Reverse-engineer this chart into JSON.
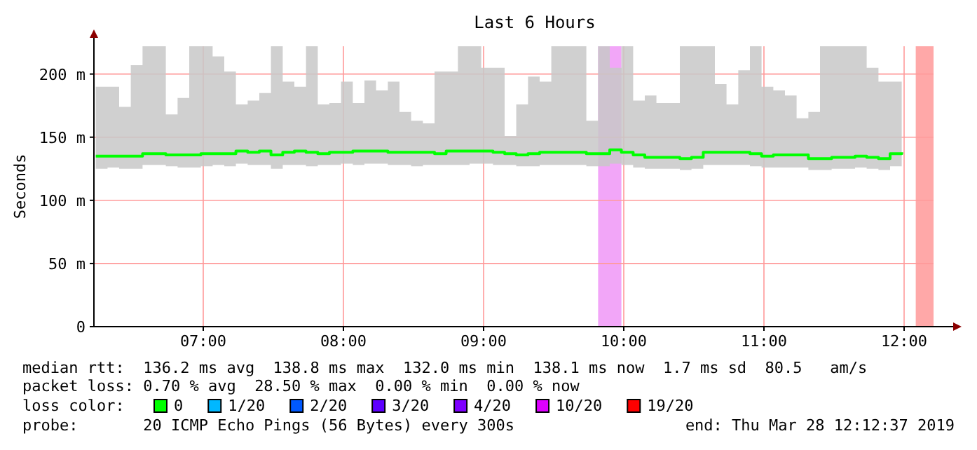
{
  "chart_data": {
    "type": "step",
    "title": "Last 6 Hours",
    "ylabel": "Seconds",
    "legend_title": "loss color:",
    "legend": "bottom",
    "grid": true,
    "xlim": [
      6.22,
      12.21
    ],
    "ylim": [
      0,
      222
    ],
    "xticks": [
      {
        "value": 7,
        "label": "07:00"
      },
      {
        "value": 8,
        "label": "08:00"
      },
      {
        "value": 9,
        "label": "09:00"
      },
      {
        "value": 10,
        "label": "10:00"
      },
      {
        "value": 11,
        "label": "11:00"
      },
      {
        "value": 12,
        "label": "12:00"
      }
    ],
    "yticks": [
      {
        "value": 0,
        "label": "0"
      },
      {
        "value": 50,
        "label": "50 m"
      },
      {
        "value": 100,
        "label": "100 m"
      },
      {
        "value": 150,
        "label": "150 m"
      },
      {
        "value": 200,
        "label": "200 m"
      }
    ],
    "x": [
      6.233,
      6.317,
      6.4,
      6.483,
      6.567,
      6.65,
      6.733,
      6.817,
      6.9,
      6.983,
      7.067,
      7.15,
      7.233,
      7.317,
      7.4,
      7.483,
      7.567,
      7.65,
      7.733,
      7.817,
      7.9,
      7.983,
      8.067,
      8.15,
      8.233,
      8.317,
      8.4,
      8.483,
      8.567,
      8.65,
      8.733,
      8.817,
      8.9,
      8.983,
      9.067,
      9.15,
      9.233,
      9.317,
      9.4,
      9.483,
      9.567,
      9.65,
      9.733,
      9.817,
      9.9,
      9.983,
      10.067,
      10.15,
      10.233,
      10.317,
      10.4,
      10.483,
      10.567,
      10.65,
      10.733,
      10.817,
      10.9,
      10.983,
      11.067,
      11.15,
      11.233,
      11.317,
      11.4,
      11.483,
      11.567,
      11.65,
      11.733,
      11.817,
      11.9,
      11.983
    ],
    "series": [
      {
        "name": "0",
        "color": "#00ff00",
        "values": [
          135,
          135,
          135,
          135,
          137,
          137,
          136,
          136,
          136,
          137,
          137,
          137,
          139,
          138,
          139,
          136,
          138,
          139,
          138,
          137,
          138,
          138,
          139,
          139,
          139,
          138,
          138,
          138,
          138,
          137,
          139,
          139,
          139,
          139,
          138,
          137,
          136,
          137,
          138,
          138,
          138,
          138,
          137,
          137,
          140,
          138,
          136,
          134,
          134,
          134,
          133,
          134,
          138,
          138,
          138,
          138,
          137,
          135,
          136,
          136,
          136,
          133,
          133,
          134,
          134,
          135,
          134,
          133,
          137,
          138
        ],
        "lower": [
          125,
          126,
          125,
          125,
          128,
          128,
          127,
          126,
          126,
          127,
          128,
          127,
          129,
          128,
          128,
          125,
          128,
          128,
          127,
          128,
          128,
          129,
          128,
          129,
          129,
          128,
          128,
          127,
          128,
          128,
          128,
          128,
          129,
          129,
          128,
          128,
          127,
          127,
          128,
          128,
          128,
          128,
          127,
          127,
          129,
          128,
          126,
          125,
          125,
          125,
          124,
          125,
          128,
          128,
          128,
          128,
          127,
          126,
          126,
          126,
          126,
          124,
          124,
          125,
          125,
          126,
          125,
          124,
          127,
          128
        ],
        "upper": [
          190,
          190,
          174,
          207,
          222,
          222,
          168,
          181,
          222,
          222,
          214,
          202,
          176,
          179,
          185,
          222,
          194,
          190,
          222,
          176,
          177,
          194,
          177,
          195,
          187,
          194,
          170,
          163,
          161,
          202,
          202,
          222,
          222,
          205,
          205,
          151,
          176,
          198,
          194,
          222,
          222,
          222,
          163,
          222,
          205,
          222,
          179,
          183,
          177,
          177,
          222,
          222,
          222,
          192,
          176,
          203,
          222,
          190,
          187,
          183,
          165,
          170,
          222,
          222,
          222,
          222,
          205,
          194,
          194,
          170
        ]
      },
      {
        "name": "1/20",
        "color": "#00b8ff",
        "values": [
          null,
          null,
          null,
          null,
          null,
          null,
          null,
          null,
          null,
          null,
          null,
          null,
          null,
          null,
          null,
          null,
          null,
          null,
          null,
          null,
          null,
          null,
          null,
          null,
          null,
          null,
          null,
          null,
          null,
          null,
          null,
          null,
          null,
          null,
          null,
          null,
          null,
          null,
          null,
          null,
          null,
          null,
          null,
          null,
          null,
          null,
          null,
          null,
          null,
          null,
          null,
          null,
          null,
          null,
          null,
          null,
          null,
          null,
          null,
          null,
          null,
          null,
          null,
          null,
          null,
          null,
          null,
          null,
          null,
          null
        ]
      },
      {
        "name": "2/20",
        "color": "#0059ff",
        "values": [
          null,
          null,
          null,
          null,
          null,
          null,
          null,
          null,
          null,
          null,
          null,
          null,
          null,
          null,
          null,
          null,
          null,
          null,
          null,
          null,
          null,
          null,
          null,
          null,
          null,
          null,
          null,
          null,
          null,
          null,
          null,
          null,
          null,
          null,
          null,
          null,
          null,
          null,
          null,
          null,
          null,
          null,
          null,
          null,
          null,
          null,
          null,
          null,
          null,
          null,
          null,
          null,
          null,
          null,
          null,
          null,
          null,
          null,
          null,
          null,
          null,
          null,
          null,
          null,
          null,
          null,
          null,
          null,
          null,
          null
        ]
      },
      {
        "name": "3/20",
        "color": "#5e00ff",
        "values": [
          null,
          null,
          null,
          null,
          null,
          null,
          null,
          null,
          null,
          null,
          null,
          null,
          null,
          null,
          null,
          null,
          null,
          null,
          null,
          null,
          null,
          null,
          null,
          null,
          null,
          null,
          null,
          null,
          null,
          null,
          null,
          null,
          null,
          null,
          null,
          null,
          null,
          null,
          null,
          null,
          null,
          null,
          null,
          null,
          null,
          null,
          null,
          null,
          null,
          null,
          null,
          null,
          null,
          null,
          null,
          null,
          null,
          null,
          null,
          null,
          null,
          null,
          null,
          null,
          null,
          null,
          null,
          null,
          null,
          null
        ]
      },
      {
        "name": "4/20",
        "color": "#7e00ff",
        "values": [
          null,
          null,
          null,
          null,
          null,
          null,
          null,
          null,
          null,
          null,
          null,
          null,
          null,
          null,
          null,
          null,
          null,
          null,
          null,
          null,
          null,
          null,
          null,
          null,
          null,
          null,
          null,
          null,
          null,
          null,
          null,
          null,
          null,
          null,
          null,
          null,
          null,
          null,
          null,
          null,
          null,
          null,
          null,
          null,
          null,
          null,
          null,
          null,
          null,
          null,
          null,
          null,
          null,
          null,
          null,
          null,
          null,
          null,
          null,
          null,
          null,
          null,
          null,
          null,
          null,
          null,
          null,
          null,
          null,
          null
        ]
      },
      {
        "name": "10/20",
        "color": "#dd00ff",
        "values": [
          null,
          null,
          null,
          null,
          null,
          null,
          null,
          null,
          null,
          null,
          null,
          null,
          null,
          null,
          null,
          null,
          null,
          null,
          null,
          null,
          null,
          null,
          null,
          null,
          null,
          null,
          null,
          null,
          null,
          null,
          null,
          null,
          null,
          null,
          null,
          null,
          null,
          null,
          null,
          null,
          null,
          null,
          null,
          null,
          null,
          null,
          null,
          null,
          null,
          null,
          null,
          null,
          null,
          null,
          null,
          null,
          null,
          null,
          null,
          null,
          null,
          null,
          null,
          null,
          null,
          null,
          null,
          null,
          null,
          null
        ]
      },
      {
        "name": "19/20",
        "color": "#ff0000",
        "values": [
          null,
          null,
          null,
          null,
          null,
          null,
          null,
          null,
          null,
          null,
          null,
          null,
          null,
          null,
          null,
          null,
          null,
          null,
          null,
          null,
          null,
          null,
          null,
          null,
          null,
          null,
          null,
          null,
          null,
          null,
          null,
          null,
          null,
          null,
          null,
          null,
          null,
          null,
          null,
          null,
          null,
          null,
          null,
          null,
          null,
          null,
          null,
          null,
          null,
          null,
          null,
          null,
          null,
          null,
          null,
          null,
          null,
          null,
          null,
          null,
          null,
          null,
          null,
          null,
          null,
          null,
          null,
          null,
          null,
          null
        ]
      }
    ],
    "bands": [
      {
        "axis": "x",
        "from": 9.817,
        "to": 9.983,
        "color": "#f2a6f8"
      },
      {
        "axis": "x",
        "from": 12.083,
        "to": 12.21,
        "color": "#ffa8a8"
      }
    ],
    "annotations": [
      "median rtt:  136.2 ms avg  138.8 ms max  132.0 ms min  138.1 ms now  1.7 ms sd  80.5   am/s",
      "packet loss: 0.70 % avg  28.50 % max  0.00 % min  0.00 % now",
      "probe:       20 ICMP Echo Pings (56 Bytes) every 300s",
      "end: Thu Mar 28 12:12:37 2019"
    ]
  }
}
